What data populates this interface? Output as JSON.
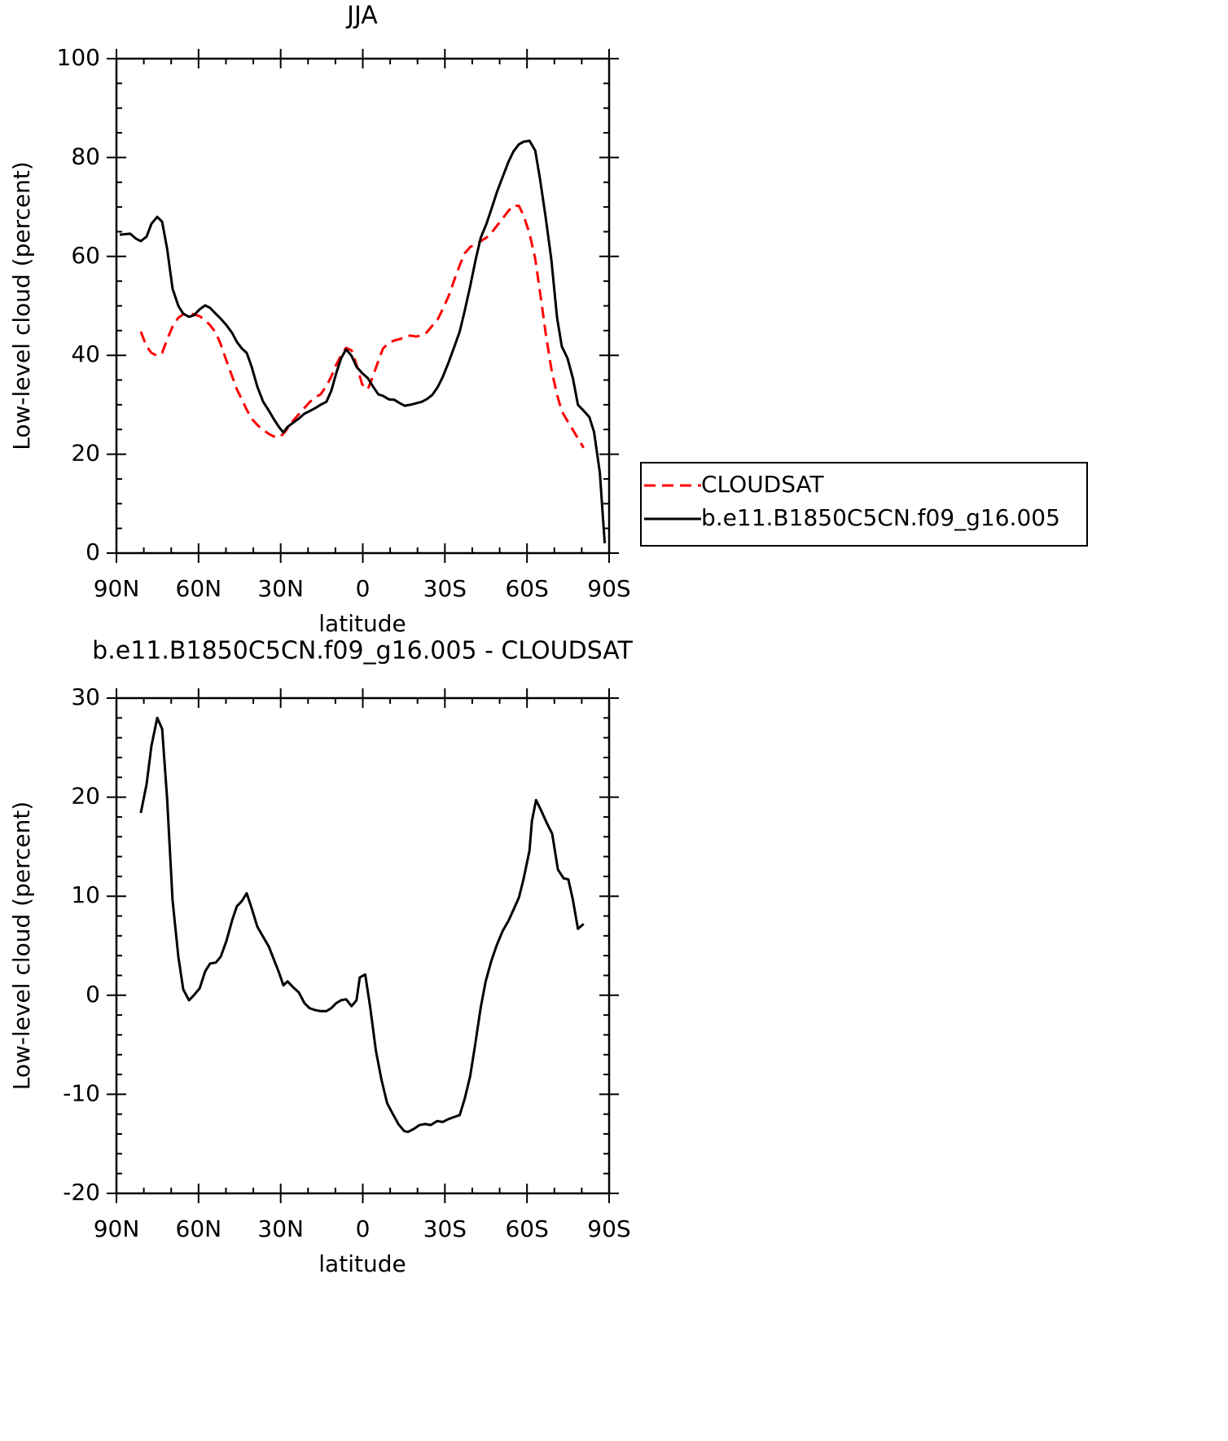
{
  "chart_data": [
    {
      "type": "line",
      "title": "JJA",
      "xlabel": "latitude",
      "ylabel": "Low-level cloud (percent)",
      "xlim": [
        90,
        -90
      ],
      "xticks": [
        {
          "value": 90,
          "label": "90N"
        },
        {
          "value": 60,
          "label": "60N"
        },
        {
          "value": 30,
          "label": "30N"
        },
        0,
        {
          "value": -30,
          "label": "30S"
        },
        {
          "value": -60,
          "label": "60S"
        },
        {
          "value": -90,
          "label": "90S"
        }
      ],
      "ylim": [
        0,
        100
      ],
      "yticks": [
        0,
        20,
        40,
        60,
        80,
        100
      ],
      "grid": false,
      "legend": "outside-right",
      "series": [
        {
          "name": "CLOUDSAT",
          "color": "#ff0000",
          "line_style": "dashed",
          "x": [
            81.1,
            79,
            77.2,
            75.1,
            73.3,
            71.5,
            69.5,
            67.4,
            65.6,
            63.5,
            61.7,
            59.6,
            57.6,
            55.8,
            53.7,
            51.9,
            49.8,
            47.7,
            46,
            44.2,
            42.4,
            40.6,
            38.5,
            36.4,
            34.3,
            32.6,
            30.5,
            28.4,
            26.4,
            24,
            21.6,
            19.5,
            17.4,
            15.4,
            13.3,
            11.5,
            9.7,
            7.9,
            6.1,
            4.1,
            2.3,
            0.2,
            -1.8,
            -3.6,
            -5.7,
            -7.4,
            -9.5,
            -11.5,
            -13.6,
            -15.3,
            -17.4,
            -19.5,
            -21.5,
            -23.3,
            -25.4,
            -27.4,
            -29.2,
            -31.3,
            -33.3,
            -35.4,
            -37.2,
            -39.2,
            -41.3,
            -43.1,
            -45.2,
            -47.2,
            -49,
            -51.1,
            -53.2,
            -55,
            -57.1,
            -58.8,
            -60.9,
            -63,
            -64.8,
            -66.8,
            -68.9,
            -71,
            -72.7,
            -74.8,
            -76.8,
            -78.6,
            -80.7
          ],
          "values": [
            44.8,
            41.8,
            40.5,
            39.9,
            40.5,
            43.2,
            45.8,
            47.6,
            48.3,
            48.4,
            48.3,
            47.9,
            47.1,
            46.1,
            44.6,
            42.2,
            38.9,
            35.7,
            33.1,
            31.1,
            29,
            27.2,
            25.9,
            24.9,
            24.1,
            23.6,
            23.4,
            24.5,
            26.2,
            27.7,
            29.2,
            30.5,
            31.5,
            32.1,
            33.8,
            35.7,
            38.1,
            40,
            41.5,
            41,
            38.1,
            34.1,
            33.1,
            35.6,
            38.9,
            41.4,
            42.5,
            43,
            43.3,
            43.7,
            44,
            43.8,
            44,
            44.6,
            46,
            47.3,
            49.3,
            51.9,
            55,
            58.2,
            60.6,
            61.9,
            62.4,
            63.1,
            63.8,
            64.9,
            66.2,
            67.7,
            69.2,
            70.3,
            70.2,
            68.2,
            64.7,
            59.5,
            52.6,
            44.6,
            37.2,
            32,
            28.7,
            26.7,
            24.9,
            23.2,
            21.3
          ]
        },
        {
          "name": "b.e11.B1850C5CN.f09_g16.005",
          "color": "#000000",
          "line_style": "solid",
          "x": [
            88.8,
            85,
            82.9,
            81.1,
            79,
            77.2,
            75.1,
            73.3,
            71.5,
            69.5,
            67.4,
            65.6,
            63.5,
            61.7,
            59.6,
            57.6,
            55.8,
            53.7,
            51.9,
            49.8,
            47.7,
            46,
            44.2,
            42.4,
            40.6,
            38.5,
            36.4,
            34.3,
            32.6,
            30.5,
            29,
            27.5,
            25.4,
            23.4,
            21.3,
            19.5,
            17.4,
            15.4,
            13.3,
            11.5,
            9.7,
            7.9,
            6.1,
            4.1,
            2.3,
            0.2,
            -1.8,
            -3.6,
            -5.7,
            -7.4,
            -9.5,
            -11.5,
            -13.6,
            -15.3,
            -17.4,
            -19.5,
            -21.5,
            -23.3,
            -25.4,
            -27.4,
            -29.2,
            -31.3,
            -33.3,
            -35.4,
            -37.2,
            -39.2,
            -41.3,
            -43.1,
            -45.2,
            -47.2,
            -49,
            -51.1,
            -53.2,
            -55,
            -57.1,
            -58.8,
            -60.9,
            -63,
            -64.8,
            -66.8,
            -68.9,
            -71,
            -72.7,
            -74.8,
            -76.8,
            -78.6,
            -80.7,
            -82.8,
            -84.5,
            -86.6,
            -88.4
          ],
          "values": [
            64.4,
            64.6,
            63.6,
            63.1,
            64,
            66.6,
            68,
            67,
            61.6,
            53.5,
            50,
            48.4,
            47.8,
            48.1,
            49.3,
            50.1,
            49.6,
            48.4,
            47.4,
            46.1,
            44.5,
            42.7,
            41.4,
            40.5,
            37.7,
            33.6,
            30.6,
            28.8,
            27.2,
            25.4,
            24.4,
            25.5,
            26.4,
            27.2,
            28.2,
            28.7,
            29.3,
            30,
            30.6,
            32.8,
            36.4,
            39.4,
            41.2,
            39.9,
            37.7,
            36.4,
            35.4,
            33.8,
            32.1,
            31.8,
            31.1,
            31,
            30.3,
            29.8,
            30,
            30.3,
            30.6,
            31.1,
            32,
            33.6,
            35.6,
            38.5,
            41.5,
            44.8,
            48.9,
            53.9,
            59.5,
            63.8,
            66.6,
            69.9,
            73,
            76.1,
            79.1,
            81.2,
            82.7,
            83.2,
            83.4,
            81.4,
            75.5,
            68,
            59.3,
            47.6,
            41.8,
            39.4,
            35.3,
            30,
            28.8,
            27.5,
            24.5,
            16.3,
            2
          ]
        }
      ]
    },
    {
      "type": "line",
      "title": "b.e11.B1850C5CN.f09_g16.005 - CLOUDSAT",
      "xlabel": "latitude",
      "ylabel": "Low-level cloud (percent)",
      "xlim": [
        90,
        -90
      ],
      "xticks": [
        {
          "value": 90,
          "label": "90N"
        },
        {
          "value": 60,
          "label": "60N"
        },
        {
          "value": 30,
          "label": "30N"
        },
        0,
        {
          "value": -30,
          "label": "30S"
        },
        {
          "value": -60,
          "label": "60S"
        },
        {
          "value": -90,
          "label": "90S"
        }
      ],
      "ylim": [
        -20,
        30
      ],
      "yticks": [
        -20,
        -10,
        0,
        10,
        20,
        30
      ],
      "grid": false,
      "series": [
        {
          "color": "#000000",
          "line_style": "solid",
          "x": [
            81.1,
            79,
            77.2,
            75.1,
            73.3,
            71.5,
            69.5,
            67.4,
            65.6,
            63.5,
            61.7,
            59.6,
            57.6,
            55.8,
            53.7,
            51.9,
            49.8,
            47.7,
            46,
            44.2,
            42.4,
            40.6,
            38.5,
            36.4,
            34.3,
            32.6,
            30.5,
            29,
            27.5,
            25.4,
            23.4,
            21.3,
            19.5,
            17.4,
            15.4,
            13.3,
            11.5,
            9.7,
            7.9,
            6.1,
            4.1,
            2.3,
            1.1,
            -0.9,
            -2.7,
            -4.8,
            -6.8,
            -8.9,
            -11,
            -13,
            -15.1,
            -16.5,
            -18.6,
            -20.7,
            -22.8,
            -24.8,
            -27.2,
            -29.2,
            -31.3,
            -33.3,
            -35.4,
            -37.2,
            -39.2,
            -41,
            -43.1,
            -44.9,
            -47,
            -49,
            -51.1,
            -53.2,
            -55,
            -57.1,
            -58.8,
            -60.9,
            -61.8,
            -63.3,
            -65.1,
            -67.2,
            -69.2,
            -71.3,
            -73.4,
            -75.1,
            -76.8,
            -78.6,
            -80.7
          ],
          "values": [
            18.4,
            21.3,
            25.2,
            28,
            26.9,
            19.9,
            9.6,
            3.9,
            0.6,
            -0.5,
            0,
            0.7,
            2.4,
            3.2,
            3.3,
            3.9,
            5.5,
            7.6,
            9,
            9.5,
            10.3,
            8.8,
            6.9,
            5.9,
            4.9,
            3.7,
            2.2,
            1,
            1.4,
            0.8,
            0.3,
            -0.8,
            -1.3,
            -1.5,
            -1.6,
            -1.6,
            -1.3,
            -0.8,
            -0.5,
            -0.4,
            -1.1,
            -0.5,
            1.8,
            2.1,
            -1.2,
            -5.6,
            -8.5,
            -10.9,
            -12,
            -13,
            -13.7,
            -13.8,
            -13.5,
            -13.1,
            -13,
            -13.1,
            -12.7,
            -12.8,
            -12.5,
            -12.3,
            -12.1,
            -10.5,
            -8.2,
            -5.1,
            -1.2,
            1.4,
            3.5,
            5.1,
            6.5,
            7.5,
            8.6,
            9.9,
            11.8,
            14.6,
            17.6,
            19.7,
            18.7,
            17.4,
            16.3,
            12.7,
            11.8,
            11.7,
            9.6,
            6.7,
            7.2
          ]
        }
      ]
    }
  ]
}
